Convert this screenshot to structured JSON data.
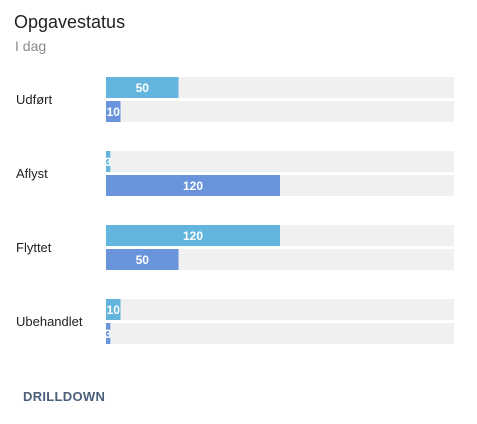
{
  "header": {
    "title": "Opgavestatus",
    "subtitle": "I dag"
  },
  "actions": {
    "drilldown_label": "DRILLDOWN"
  },
  "colors": {
    "series_1": "#63b5dd",
    "series_2": "#6994dc",
    "track": "#f0f0f0"
  },
  "chart_data": {
    "type": "bar",
    "orientation": "horizontal",
    "categories": [
      "Udført",
      "Aflyst",
      "Flyttet",
      "Ubehandlet"
    ],
    "series": [
      {
        "values": [
          50,
          3,
          120,
          10
        ]
      },
      {
        "values": [
          10,
          120,
          50,
          3
        ]
      }
    ],
    "xlim": [
      0,
      240
    ],
    "grid": false,
    "legend": "none",
    "data_labels": true
  }
}
